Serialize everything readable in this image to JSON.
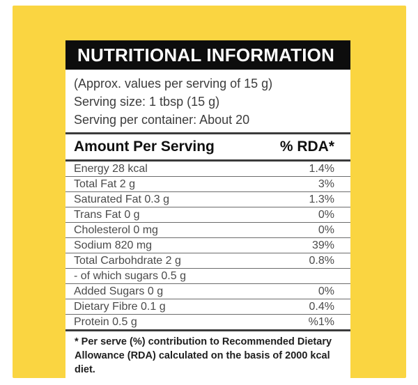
{
  "header": {
    "title": "NUTRITIONAL INFORMATION"
  },
  "serving_info": {
    "lines": [
      "(Approx. values per serving of 15 g)",
      "Serving size: 1 tbsp (15 g)",
      "Serving per container: About 20"
    ]
  },
  "table": {
    "columns": {
      "amount": "Amount Per Serving",
      "rda": "% RDA*"
    },
    "rows": [
      {
        "label": "Energy 28 kcal",
        "value": "1.4%"
      },
      {
        "label": "Total Fat 2 g",
        "value": "3%"
      },
      {
        "label": "Saturated Fat 0.3 g",
        "value": "1.3%"
      },
      {
        "label": "Trans Fat 0 g",
        "value": "0%"
      },
      {
        "label": "Cholesterol 0 mg",
        "value": "0%"
      },
      {
        "label": "Sodium 820 mg",
        "value": "39%"
      },
      {
        "label": "Total Carbohdrate 2 g",
        "value": "0.8%"
      },
      {
        "label": "- of which sugars 0.5 g",
        "value": ""
      },
      {
        "label": "Added Sugars 0 g",
        "value": "0%"
      },
      {
        "label": "Dietary Fibre 0.1 g",
        "value": "0.4%"
      },
      {
        "label": "Protein 0.5 g",
        "value": "%1%"
      }
    ]
  },
  "footnote": {
    "text": "* Per serve (%) contribution to Recommended Dietary Allowance (RDA) calculated on the basis of 2000 kcal diet."
  },
  "colors": {
    "background_yellow": "#FAD541",
    "header_black": "#0D0D0D",
    "panel_white": "#FFFFFF"
  }
}
